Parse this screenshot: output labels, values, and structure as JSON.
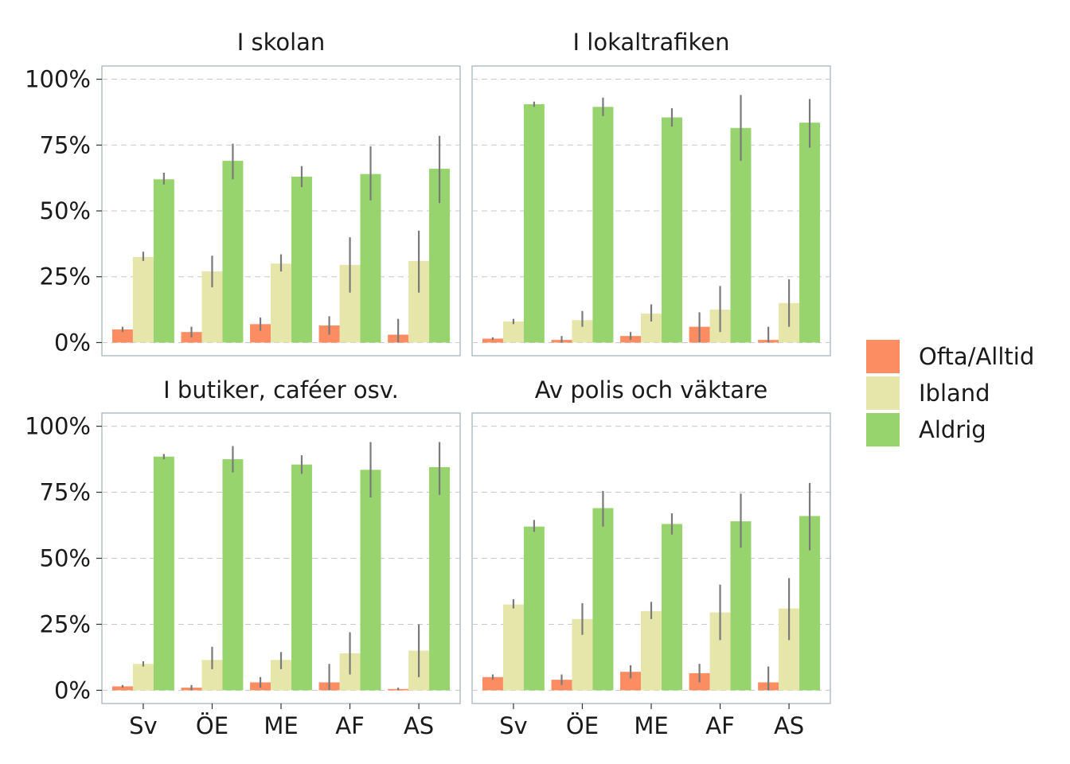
{
  "chart_data": {
    "type": "bar",
    "ylim": [
      0,
      1
    ],
    "y_tick_labels": [
      "0%",
      "25%",
      "50%",
      "75%",
      "100%"
    ],
    "y_tick_values": [
      0,
      0.25,
      0.5,
      0.75,
      1.0
    ],
    "grid": "dashed horizontal major gridlines",
    "legend_position": "right",
    "categories": [
      "Sv",
      "ÖE",
      "ME",
      "AF",
      "AS"
    ],
    "series_order": [
      "Ofta/Alltid",
      "Ibland",
      "Aldrig"
    ],
    "colors": {
      "Ofta/Alltid": "#fc8d62",
      "Ibland": "#e6e6ab",
      "Aldrig": "#98d46e",
      "errorbar": "#7a7a7a",
      "panel_border": "#9fb0b5",
      "grid": "#c8c8c8"
    },
    "panels": [
      {
        "title": "I skolan",
        "series": [
          {
            "name": "Ofta/Alltid",
            "values": [
              0.05,
              0.04,
              0.07,
              0.065,
              0.03
            ],
            "err_low": [
              0.04,
              0.02,
              0.045,
              0.03,
              0.0
            ],
            "err_high": [
              0.06,
              0.06,
              0.095,
              0.1,
              0.09
            ]
          },
          {
            "name": "Ibland",
            "values": [
              0.325,
              0.27,
              0.3,
              0.295,
              0.31
            ],
            "err_low": [
              0.31,
              0.21,
              0.27,
              0.19,
              0.19
            ],
            "err_high": [
              0.345,
              0.33,
              0.335,
              0.4,
              0.425
            ]
          },
          {
            "name": "Aldrig",
            "values": [
              0.62,
              0.69,
              0.63,
              0.64,
              0.66
            ],
            "err_low": [
              0.6,
              0.62,
              0.59,
              0.54,
              0.53
            ],
            "err_high": [
              0.645,
              0.755,
              0.67,
              0.745,
              0.785
            ]
          }
        ]
      },
      {
        "title": "I lokaltrafiken",
        "series": [
          {
            "name": "Ofta/Alltid",
            "values": [
              0.015,
              0.01,
              0.025,
              0.06,
              0.01
            ],
            "err_low": [
              0.01,
              0.0,
              0.01,
              0.0,
              0.0
            ],
            "err_high": [
              0.02,
              0.025,
              0.04,
              0.115,
              0.06
            ]
          },
          {
            "name": "Ibland",
            "values": [
              0.08,
              0.085,
              0.11,
              0.125,
              0.15
            ],
            "err_low": [
              0.07,
              0.06,
              0.08,
              0.04,
              0.06
            ],
            "err_high": [
              0.09,
              0.12,
              0.145,
              0.215,
              0.24
            ]
          },
          {
            "name": "Aldrig",
            "values": [
              0.905,
              0.895,
              0.855,
              0.815,
              0.835
            ],
            "err_low": [
              0.895,
              0.86,
              0.82,
              0.69,
              0.74
            ],
            "err_high": [
              0.915,
              0.93,
              0.89,
              0.94,
              0.925
            ]
          }
        ]
      },
      {
        "title": "I butiker, caféer osv.",
        "series": [
          {
            "name": "Ofta/Alltid",
            "values": [
              0.015,
              0.01,
              0.03,
              0.03,
              0.005
            ],
            "err_low": [
              0.01,
              0.0,
              0.01,
              0.0,
              0.0
            ],
            "err_high": [
              0.02,
              0.02,
              0.05,
              0.1,
              0.01
            ]
          },
          {
            "name": "Ibland",
            "values": [
              0.1,
              0.115,
              0.115,
              0.14,
              0.15
            ],
            "err_low": [
              0.09,
              0.08,
              0.08,
              0.06,
              0.05
            ],
            "err_high": [
              0.11,
              0.165,
              0.145,
              0.22,
              0.25
            ]
          },
          {
            "name": "Aldrig",
            "values": [
              0.885,
              0.875,
              0.855,
              0.835,
              0.845
            ],
            "err_low": [
              0.875,
              0.825,
              0.82,
              0.73,
              0.74
            ],
            "err_high": [
              0.895,
              0.925,
              0.89,
              0.94,
              0.94
            ]
          }
        ]
      },
      {
        "title": "Av polis och väktare",
        "series": [
          {
            "name": "Ofta/Alltid",
            "values": [
              0.05,
              0.04,
              0.07,
              0.065,
              0.03
            ],
            "err_low": [
              0.04,
              0.02,
              0.045,
              0.03,
              0.0
            ],
            "err_high": [
              0.06,
              0.06,
              0.095,
              0.1,
              0.09
            ]
          },
          {
            "name": "Ibland",
            "values": [
              0.325,
              0.27,
              0.3,
              0.295,
              0.31
            ],
            "err_low": [
              0.31,
              0.21,
              0.27,
              0.19,
              0.19
            ],
            "err_high": [
              0.345,
              0.33,
              0.335,
              0.4,
              0.425
            ]
          },
          {
            "name": "Aldrig",
            "values": [
              0.62,
              0.69,
              0.63,
              0.64,
              0.66
            ],
            "err_low": [
              0.6,
              0.62,
              0.59,
              0.54,
              0.53
            ],
            "err_high": [
              0.645,
              0.755,
              0.67,
              0.745,
              0.785
            ]
          }
        ]
      }
    ],
    "legend": [
      {
        "name": "Ofta/Alltid"
      },
      {
        "name": "Ibland"
      },
      {
        "name": "Aldrig"
      }
    ]
  }
}
